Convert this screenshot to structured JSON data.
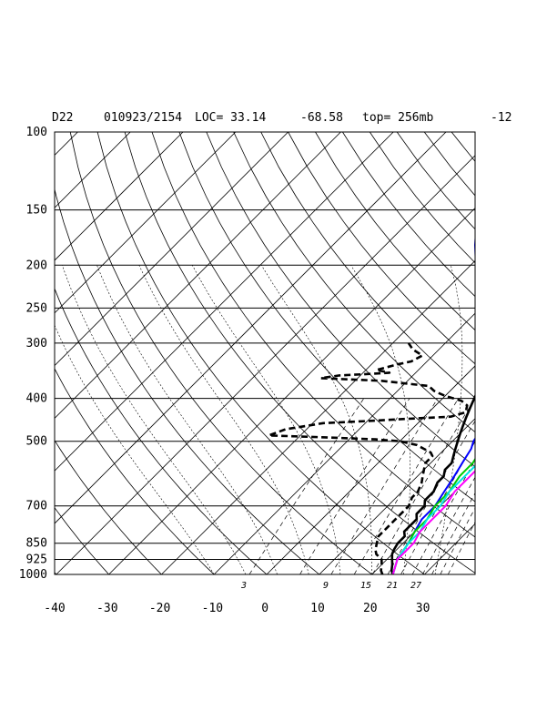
{
  "header": {
    "station": "D22",
    "datetime": "010923/2154",
    "loc": "LOC= 33.14",
    "lon": "-68.58",
    "top": "top= 256mb",
    "extra": "-12"
  },
  "chart_data": {
    "type": "line",
    "title": "",
    "xlabel": "",
    "ylabel": "",
    "x_ticks": [
      "-40",
      "-30",
      "-20",
      "-10",
      "0",
      "10",
      "20",
      "30"
    ],
    "pressure_levels": [
      100,
      150,
      200,
      250,
      300,
      400,
      500,
      700,
      850,
      925,
      1000
    ],
    "pressure_labels": [
      "100",
      "150",
      "200",
      "250",
      "300",
      "400",
      "500",
      "700",
      "850",
      "925",
      "1000"
    ],
    "mixing_ratio_labels": [
      "3",
      "9",
      "15",
      "21",
      "27"
    ],
    "xlim": [
      -40,
      40
    ],
    "ylim": [
      1000,
      100
    ],
    "y_scale": "log-pressure",
    "grid": true,
    "series": [
      {
        "color": "#000000",
        "style": "solid",
        "points": [
          [
            24,
            1000
          ],
          [
            23,
            980
          ],
          [
            22,
            950
          ],
          [
            21,
            925
          ],
          [
            20,
            900
          ],
          [
            19.5,
            880
          ],
          [
            19,
            850
          ],
          [
            19,
            820
          ],
          [
            18,
            800
          ],
          [
            18,
            750
          ],
          [
            17,
            730
          ],
          [
            17,
            700
          ],
          [
            16,
            680
          ],
          [
            16,
            650
          ],
          [
            15,
            620
          ],
          [
            15,
            600
          ],
          [
            14,
            580
          ],
          [
            14,
            560
          ],
          [
            13,
            540
          ],
          [
            12,
            520
          ],
          [
            11,
            500
          ],
          [
            10,
            480
          ],
          [
            9,
            460
          ],
          [
            8,
            440
          ],
          [
            7,
            420
          ],
          [
            6,
            400
          ],
          [
            5,
            380
          ],
          [
            4,
            360
          ],
          [
            3,
            340
          ],
          [
            2,
            320
          ],
          [
            1,
            300
          ],
          [
            -1,
            280
          ],
          [
            -3,
            260
          ],
          [
            -5,
            250
          ],
          [
            -7,
            230
          ],
          [
            -9,
            215
          ],
          [
            -11,
            205
          ],
          [
            -12,
            195
          ],
          [
            -13,
            185
          ],
          [
            -13.5,
            170
          ],
          [
            -14,
            160
          ],
          [
            -14.5,
            150
          ],
          [
            -14,
            140
          ],
          [
            -13,
            130
          ],
          [
            -11,
            120
          ],
          [
            -9,
            110
          ],
          [
            -8,
            100
          ]
        ]
      },
      {
        "color": "#000000",
        "style": "dashed",
        "points": [
          [
            22,
            1000
          ],
          [
            21,
            980
          ],
          [
            20,
            950
          ],
          [
            19,
            925
          ],
          [
            17,
            900
          ],
          [
            16,
            880
          ],
          [
            15,
            850
          ],
          [
            14,
            820
          ],
          [
            14,
            800
          ],
          [
            14,
            780
          ],
          [
            14,
            750
          ],
          [
            14,
            720
          ],
          [
            14,
            700
          ],
          [
            13,
            670
          ],
          [
            13,
            650
          ],
          [
            12,
            620
          ],
          [
            11,
            600
          ],
          [
            10,
            580
          ],
          [
            9,
            560
          ],
          [
            9,
            540
          ],
          [
            8,
            530
          ],
          [
            6,
            520
          ],
          [
            4,
            510
          ],
          [
            0,
            500
          ],
          [
            -5,
            495
          ],
          [
            -15,
            490
          ],
          [
            -26,
            485
          ],
          [
            -24,
            470
          ],
          [
            -18,
            455
          ],
          [
            -10,
            450
          ],
          [
            -3,
            445
          ],
          [
            5,
            440
          ],
          [
            7,
            430
          ],
          [
            6,
            415
          ],
          [
            4,
            405
          ],
          [
            0,
            395
          ],
          [
            -3,
            385
          ],
          [
            -5,
            375
          ],
          [
            -15,
            365
          ],
          [
            -27,
            360
          ],
          [
            -24,
            355
          ],
          [
            -18,
            352
          ],
          [
            -15,
            350
          ],
          [
            -18,
            345
          ],
          [
            -15,
            335
          ],
          [
            -13,
            330
          ],
          [
            -12,
            320
          ],
          [
            -15,
            310
          ],
          [
            -17,
            300
          ]
        ]
      },
      {
        "color": "#0000ff",
        "style": "solid",
        "points": [
          [
            24,
            1000
          ],
          [
            22,
            925
          ],
          [
            21,
            850
          ],
          [
            20,
            800
          ],
          [
            19,
            750
          ],
          [
            19,
            700
          ],
          [
            18,
            650
          ],
          [
            17,
            600
          ],
          [
            16,
            560
          ],
          [
            15,
            520
          ],
          [
            14,
            500
          ],
          [
            13,
            460
          ],
          [
            11,
            420
          ],
          [
            9,
            400
          ],
          [
            6,
            370
          ],
          [
            3,
            340
          ],
          [
            0,
            310
          ],
          [
            -3,
            290
          ],
          [
            -7,
            260
          ],
          [
            -11,
            240
          ],
          [
            -15,
            220
          ],
          [
            -19,
            200
          ],
          [
            -23,
            180
          ],
          [
            -27,
            160
          ],
          [
            -31,
            140
          ],
          [
            -35,
            120
          ],
          [
            -39,
            100
          ]
        ]
      },
      {
        "color": "#00cc00",
        "style": "solid",
        "points": [
          [
            24,
            1000
          ],
          [
            22,
            925
          ],
          [
            21,
            850
          ],
          [
            20,
            800
          ],
          [
            20,
            750
          ],
          [
            19,
            700
          ],
          [
            19,
            650
          ],
          [
            18,
            600
          ],
          [
            18,
            560
          ],
          [
            17,
            520
          ],
          [
            16,
            500
          ],
          [
            15,
            460
          ],
          [
            13,
            420
          ],
          [
            11,
            400
          ],
          [
            8,
            370
          ],
          [
            5,
            340
          ],
          [
            2,
            310
          ],
          [
            -1,
            290
          ],
          [
            -5,
            260
          ],
          [
            -9,
            240
          ],
          [
            -13,
            220
          ],
          [
            -17,
            200
          ],
          [
            -21,
            180
          ],
          [
            -25,
            160
          ],
          [
            -30,
            140
          ],
          [
            -34,
            120
          ],
          [
            -38,
            100
          ]
        ]
      },
      {
        "color": "#00e5e5",
        "style": "solid",
        "points": [
          [
            24,
            1000
          ],
          [
            22,
            925
          ],
          [
            21,
            850
          ],
          [
            21,
            800
          ],
          [
            20,
            750
          ],
          [
            20,
            700
          ],
          [
            19,
            650
          ],
          [
            19,
            600
          ],
          [
            19,
            560
          ],
          [
            18,
            520
          ],
          [
            17,
            500
          ],
          [
            16,
            460
          ],
          [
            15,
            420
          ],
          [
            13,
            400
          ],
          [
            11,
            370
          ],
          [
            8,
            340
          ],
          [
            5,
            310
          ],
          [
            2,
            290
          ],
          [
            -2,
            260
          ],
          [
            -6,
            240
          ],
          [
            -10,
            220
          ],
          [
            -14,
            200
          ],
          [
            -18,
            180
          ],
          [
            -22,
            160
          ],
          [
            -27,
            140
          ],
          [
            -32,
            120
          ],
          [
            -36,
            100
          ]
        ]
      },
      {
        "color": "#ff00ff",
        "style": "solid",
        "points": [
          [
            24,
            1000
          ],
          [
            22,
            925
          ],
          [
            22,
            850
          ],
          [
            21,
            800
          ],
          [
            21,
            750
          ],
          [
            21,
            700
          ],
          [
            20,
            650
          ],
          [
            20,
            600
          ],
          [
            20,
            560
          ],
          [
            21,
            530
          ],
          [
            20,
            500
          ],
          [
            19,
            460
          ],
          [
            18,
            420
          ],
          [
            17,
            400
          ],
          [
            15,
            370
          ],
          [
            13,
            340
          ],
          [
            10,
            310
          ],
          [
            7,
            290
          ],
          [
            3,
            260
          ],
          [
            -1,
            240
          ],
          [
            -5,
            220
          ],
          [
            -9,
            200
          ],
          [
            -13,
            180
          ],
          [
            -17,
            160
          ],
          [
            -22,
            140
          ],
          [
            -27,
            120
          ],
          [
            -32,
            100
          ]
        ]
      }
    ]
  }
}
